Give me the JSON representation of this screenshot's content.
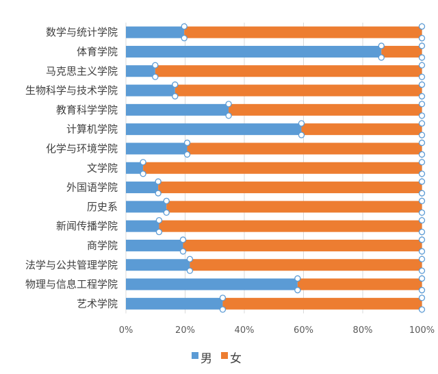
{
  "chart_data": {
    "type": "bar",
    "orientation": "horizontal",
    "stacked": "percent",
    "title": "",
    "xlabel": "",
    "ylabel": "",
    "xlim": [
      0,
      100
    ],
    "x_ticks": [
      "0%",
      "20%",
      "40%",
      "60%",
      "80%",
      "100%"
    ],
    "grid": true,
    "legend_position": "bottom",
    "categories": [
      "数学与统计学院",
      "体育学院",
      "马克思主义学院",
      "生物科学与技术学院",
      "教育科学学院",
      "计算机学院",
      "化学与环境学院",
      "文学院",
      "外国语学院",
      "历史系",
      "新闻传播学院",
      "商学院",
      "法学与公共管理学院",
      "物理与信息工程学院",
      "艺术学院"
    ],
    "series": [
      {
        "name": "男",
        "color": "#5B9BD5",
        "values": [
          19.7,
          86.3,
          9.9,
          16.6,
          34.7,
          59.3,
          20.7,
          5.8,
          10.9,
          13.7,
          11.2,
          19.3,
          21.6,
          58.0,
          32.7
        ]
      },
      {
        "name": "女",
        "color": "#ED7D31",
        "values": [
          80.3,
          13.7,
          90.1,
          83.4,
          65.3,
          40.7,
          79.3,
          94.2,
          89.1,
          86.3,
          88.8,
          80.7,
          78.4,
          42.0,
          67.3
        ]
      }
    ]
  }
}
